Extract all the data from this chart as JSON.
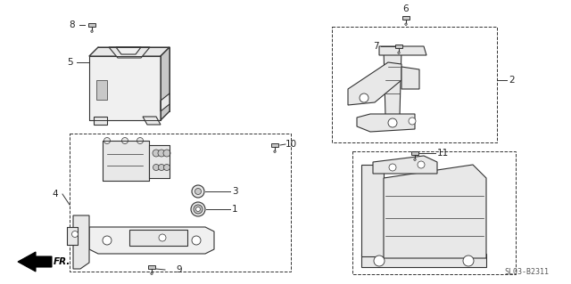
{
  "bg_color": "#ffffff",
  "line_color": "#333333",
  "fill_color": "#e8e8e8",
  "fill_dark": "#c8c8c8",
  "fill_light": "#f0f0f0",
  "text_color": "#222222",
  "diagram_id": "SL03-B2311",
  "figsize": [
    6.4,
    3.19
  ],
  "dpi": 100
}
